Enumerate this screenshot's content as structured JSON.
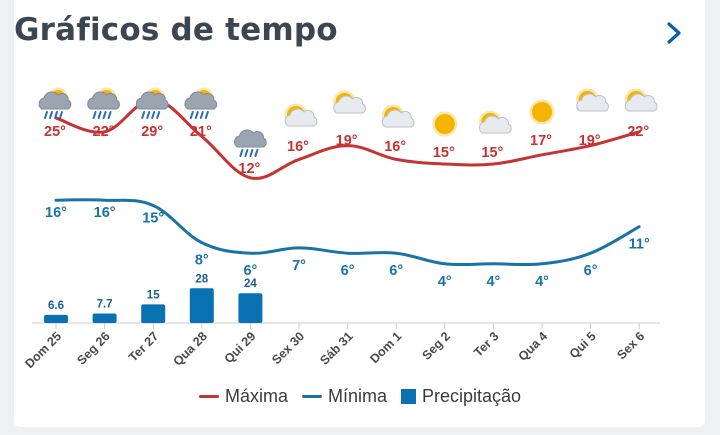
{
  "header": {
    "title": "Gráficos de tempo"
  },
  "colors": {
    "max": "#c63333",
    "min": "#1a73a8",
    "precip": "#0a71b2",
    "axis": "#c9ced3",
    "tick": "#4a4a4a"
  },
  "legend": {
    "max_label": "Máxima",
    "min_label": "Mínima",
    "precip_label": "Precipitação"
  },
  "chart_data": {
    "type": "line",
    "categories": [
      "Dom 25",
      "Seg 26",
      "Ter 27",
      "Qua 28",
      "Qui 29",
      "Sex 30",
      "Sáb 31",
      "Dom 1",
      "Seg 2",
      "Ter 3",
      "Qua 4",
      "Qui 5",
      "Sex 6"
    ],
    "series": [
      {
        "name": "Máxima",
        "values": [
          25,
          22,
          29,
          21,
          12,
          16,
          19,
          16,
          15,
          15,
          17,
          19,
          22
        ],
        "labels": [
          "25°",
          "22°",
          "29°",
          "21°",
          "12°",
          "16°",
          "19°",
          "16°",
          "15°",
          "15°",
          "17°",
          "19°",
          "22°"
        ]
      },
      {
        "name": "Mínima",
        "values": [
          16,
          16,
          15,
          8,
          6,
          7,
          6,
          6,
          4,
          4,
          4,
          6,
          11
        ],
        "labels": [
          "16°",
          "16°",
          "15°",
          "8°",
          "6°",
          "7°",
          "6°",
          "6°",
          "4°",
          "4°",
          "4°",
          "6°",
          "11°"
        ]
      },
      {
        "name": "Precipitação",
        "type": "bar",
        "values": [
          6.6,
          7.7,
          15,
          28,
          24,
          null,
          null,
          null,
          null,
          null,
          null,
          null,
          null
        ],
        "labels": [
          "6.6",
          "7.7",
          "15",
          "28",
          "24",
          "",
          "",
          "",
          "",
          "",
          "",
          "",
          ""
        ]
      }
    ],
    "icons": [
      "sun-cloud-rain-icon",
      "sun-cloud-rain-icon",
      "sun-cloud-rain-icon",
      "sun-cloud-rain-icon",
      "cloud-rain-icon",
      "sun-cloud-icon",
      "sun-cloud-icon",
      "sun-cloud-icon",
      "sun-icon",
      "sun-cloud-icon",
      "sun-icon",
      "sun-cloud-icon",
      "sun-cloud-icon"
    ],
    "legend_position": "bottom"
  }
}
